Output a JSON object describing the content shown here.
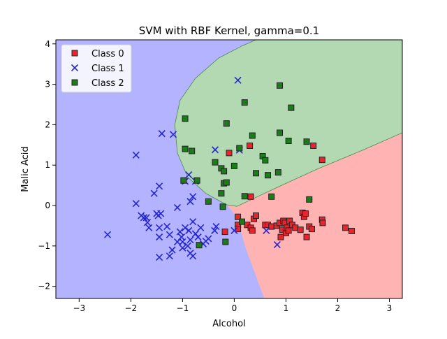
{
  "chart_data": {
    "type": "scatter",
    "title": "SVM with RBF Kernel, gamma=0.1",
    "xlabel": "Alcohol",
    "ylabel": "Malic Acid",
    "xlim": [
      -3.45,
      3.25
    ],
    "ylim": [
      -2.3,
      4.1
    ],
    "xticks": [
      -3,
      -2,
      -1,
      0,
      1,
      2,
      3
    ],
    "yticks": [
      -2,
      -1,
      0,
      1,
      2,
      3,
      4
    ],
    "grid": false,
    "legend_position": "top-left",
    "decision_regions": {
      "class_0_color": "#ffb3b3",
      "class_1_color": "#b3b3ff",
      "class_2_color": "#b3d9b3"
    },
    "series": [
      {
        "name": "Class 0",
        "marker": "square",
        "color": "#e8252e",
        "points": [
          [
            -0.1,
            1.3
          ],
          [
            0.3,
            1.48
          ],
          [
            1.53,
            1.48
          ],
          [
            1.7,
            1.13
          ],
          [
            -0.18,
            -0.65
          ],
          [
            0.07,
            -0.28
          ],
          [
            0.07,
            -0.48
          ],
          [
            0.07,
            -0.58
          ],
          [
            0.25,
            -0.48
          ],
          [
            0.32,
            0.22
          ],
          [
            0.32,
            -0.55
          ],
          [
            0.35,
            -0.62
          ],
          [
            0.38,
            -0.33
          ],
          [
            0.6,
            -0.48
          ],
          [
            0.65,
            -0.48
          ],
          [
            0.72,
            -0.52
          ],
          [
            0.82,
            -0.5
          ],
          [
            0.88,
            -0.43
          ],
          [
            0.9,
            -0.78
          ],
          [
            0.93,
            -0.6
          ],
          [
            0.95,
            -0.38
          ],
          [
            0.98,
            -0.43
          ],
          [
            1.0,
            -0.68
          ],
          [
            1.02,
            -0.55
          ],
          [
            1.05,
            -0.62
          ],
          [
            1.07,
            -0.38
          ],
          [
            1.12,
            -0.48
          ],
          [
            1.18,
            -0.55
          ],
          [
            1.28,
            -0.6
          ],
          [
            1.32,
            -0.18
          ],
          [
            1.35,
            -0.28
          ],
          [
            1.38,
            -0.2
          ],
          [
            1.4,
            -0.78
          ],
          [
            1.45,
            -0.52
          ],
          [
            1.5,
            -0.58
          ],
          [
            1.7,
            -0.35
          ],
          [
            1.71,
            -0.43
          ],
          [
            2.15,
            -0.55
          ],
          [
            2.27,
            -0.63
          ],
          [
            0.42,
            -0.25
          ]
        ]
      },
      {
        "name": "Class 1",
        "marker": "x",
        "color": "#2727d1",
        "points": [
          [
            0.07,
            3.1
          ],
          [
            -1.4,
            1.78
          ],
          [
            -1.18,
            1.76
          ],
          [
            -1.9,
            1.25
          ],
          [
            -0.37,
            1.38
          ],
          [
            0.1,
            1.37
          ],
          [
            -0.88,
            0.76
          ],
          [
            -0.95,
            0.6
          ],
          [
            -1.45,
            0.48
          ],
          [
            -1.55,
            0.3
          ],
          [
            -0.85,
            0.1
          ],
          [
            -0.8,
            0.22
          ],
          [
            -1.1,
            -0.05
          ],
          [
            -1.42,
            -0.2
          ],
          [
            -1.9,
            0.05
          ],
          [
            -1.8,
            -0.25
          ],
          [
            -1.7,
            -0.3
          ],
          [
            -1.68,
            -0.42
          ],
          [
            -1.65,
            -0.55
          ],
          [
            -1.75,
            -0.3
          ],
          [
            -1.5,
            -0.2
          ],
          [
            -1.47,
            -0.25
          ],
          [
            -1.45,
            -0.55
          ],
          [
            -1.45,
            -0.78
          ],
          [
            -1.3,
            -0.52
          ],
          [
            -1.25,
            -0.72
          ],
          [
            -1.05,
            -0.65
          ],
          [
            -1.02,
            -0.78
          ],
          [
            -0.95,
            -0.55
          ],
          [
            -0.88,
            -0.62
          ],
          [
            -0.85,
            -0.85
          ],
          [
            -0.8,
            -0.4
          ],
          [
            -0.75,
            -0.7
          ],
          [
            -0.7,
            -0.78
          ],
          [
            -0.65,
            -0.55
          ],
          [
            -0.6,
            -0.95
          ],
          [
            -0.55,
            -0.88
          ],
          [
            -0.5,
            -0.82
          ],
          [
            -0.38,
            -0.62
          ],
          [
            -0.35,
            -0.52
          ],
          [
            -0.9,
            -1.0
          ],
          [
            -0.85,
            -1.18
          ],
          [
            -0.8,
            -1.25
          ],
          [
            -1.0,
            -1.05
          ],
          [
            -1.1,
            -0.9
          ],
          [
            -1.2,
            -1.1
          ],
          [
            -1.25,
            -1.25
          ],
          [
            -1.45,
            -1.28
          ],
          [
            -2.45,
            -0.72
          ],
          [
            0.0,
            -0.62
          ],
          [
            0.62,
            -0.62
          ],
          [
            0.83,
            -0.97
          ],
          [
            -0.75,
            0.6
          ],
          [
            -1.0,
            -0.9
          ]
        ]
      },
      {
        "name": "Class 2",
        "marker": "square",
        "color": "#1a7d1a",
        "points": [
          [
            0.88,
            2.97
          ],
          [
            0.2,
            2.55
          ],
          [
            1.1,
            2.42
          ],
          [
            -0.95,
            2.15
          ],
          [
            -0.15,
            2.03
          ],
          [
            0.88,
            1.8
          ],
          [
            0.35,
            1.73
          ],
          [
            1.4,
            1.58
          ],
          [
            1.05,
            1.6
          ],
          [
            -0.95,
            1.4
          ],
          [
            -0.82,
            1.35
          ],
          [
            0.1,
            1.42
          ],
          [
            0.55,
            1.22
          ],
          [
            0.6,
            1.12
          ],
          [
            -0.37,
            1.07
          ],
          [
            -0.25,
            0.92
          ],
          [
            -0.2,
            0.85
          ],
          [
            0.0,
            0.98
          ],
          [
            0.42,
            0.8
          ],
          [
            0.65,
            0.75
          ],
          [
            0.85,
            0.82
          ],
          [
            -0.98,
            0.62
          ],
          [
            -0.72,
            0.62
          ],
          [
            -0.2,
            0.55
          ],
          [
            -0.15,
            0.57
          ],
          [
            -0.25,
            0.3
          ],
          [
            0.2,
            0.23
          ],
          [
            0.72,
            0.22
          ],
          [
            1.45,
            0.15
          ],
          [
            -0.5,
            0.1
          ],
          [
            -0.22,
            -0.03
          ],
          [
            -0.68,
            -0.98
          ],
          [
            -0.17,
            -0.9
          ],
          [
            0.15,
            -0.4
          ]
        ]
      }
    ]
  }
}
